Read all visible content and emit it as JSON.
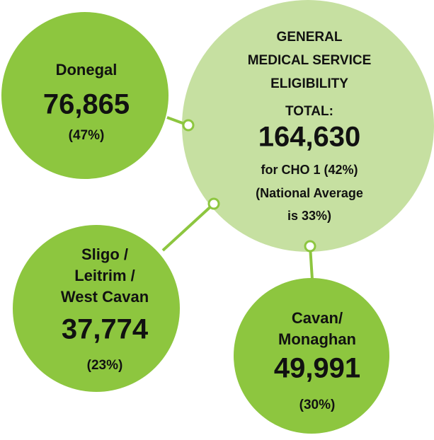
{
  "center": {
    "title_lines": [
      "GENERAL",
      "MEDICAL SERVICE",
      "ELIGIBILITY"
    ],
    "total_label": "TOTAL:",
    "total": "164,630",
    "note_lines": [
      "for CHO 1 (42%)",
      "(National Average",
      "is 33%)"
    ]
  },
  "nodes": [
    {
      "label_lines": [
        "Donegal"
      ],
      "value": "76,865",
      "share": "(47%)"
    },
    {
      "label_lines": [
        "Sligo /",
        "Leitrim /",
        "West Cavan"
      ],
      "value": "37,774",
      "share": "(23%)"
    },
    {
      "label_lines": [
        "Cavan/",
        "Monaghan"
      ],
      "value": "49,991",
      "share": "(30%)"
    }
  ]
}
